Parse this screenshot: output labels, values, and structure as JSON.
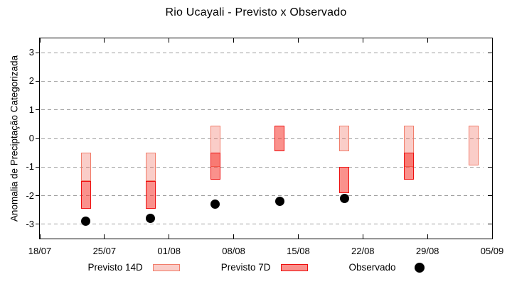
{
  "chart_data": {
    "type": "candlestick",
    "title": "Rio Ucayali - Previsto x Observado",
    "ylabel": "Anomalia de Preciptação Categorizada",
    "xlabel": "",
    "ylim": [
      -3.5,
      3.5
    ],
    "x_range_days": 49,
    "grid": "horizontal-dashed",
    "grid_color": "#9e9e9e",
    "legend_position": "bottom-center",
    "y_ticks": [
      3,
      2,
      1,
      0,
      -1,
      -2,
      -3
    ],
    "x_ticks": [
      {
        "day": 0,
        "label": "18/07"
      },
      {
        "day": 7,
        "label": "25/07"
      },
      {
        "day": 14,
        "label": "01/08"
      },
      {
        "day": 21,
        "label": "08/08"
      },
      {
        "day": 28,
        "label": "15/08"
      },
      {
        "day": 35,
        "label": "22/08"
      },
      {
        "day": 42,
        "label": "29/08"
      },
      {
        "day": 49,
        "label": "05/09"
      }
    ],
    "series": [
      {
        "name": "Previsto 14D",
        "type": "range_bar",
        "fill": "rgba(240,100,85,0.32)",
        "border": "rgba(238,110,90,0.85)",
        "points": [
          {
            "date": "23/07",
            "day": 5,
            "high": -0.5,
            "low": -1.5
          },
          {
            "date": "30/07",
            "day": 12,
            "high": -0.5,
            "low": -1.5
          },
          {
            "date": "06/08",
            "day": 19,
            "high": 0.45,
            "low": -1.0
          },
          {
            "date": "20/08",
            "day": 33,
            "high": 0.45,
            "low": -0.45
          },
          {
            "date": "27/08",
            "day": 40,
            "high": 0.45,
            "low": -1.0
          },
          {
            "date": "03/09",
            "day": 47,
            "high": 0.45,
            "low": -0.95
          }
        ]
      },
      {
        "name": "Previsto 7D",
        "type": "range_bar",
        "fill": "rgba(246,55,45,0.55)",
        "border": "#ee0f0f",
        "points": [
          {
            "date": "23/07",
            "day": 5,
            "high": -1.5,
            "low": -2.45
          },
          {
            "date": "30/07",
            "day": 12,
            "high": -1.5,
            "low": -2.45
          },
          {
            "date": "06/08",
            "day": 19,
            "high": -0.5,
            "low": -1.45
          },
          {
            "date": "13/08",
            "day": 26,
            "high": 0.45,
            "low": -0.45
          },
          {
            "date": "20/08",
            "day": 33,
            "high": -1.0,
            "low": -1.9
          },
          {
            "date": "27/08",
            "day": 40,
            "high": -0.5,
            "low": -1.45
          }
        ]
      },
      {
        "name": "Observado",
        "type": "scatter",
        "color": "#000000",
        "points": [
          {
            "date": "23/07",
            "day": 5,
            "value": -2.9
          },
          {
            "date": "30/07",
            "day": 12,
            "value": -2.8
          },
          {
            "date": "06/08",
            "day": 19,
            "value": -2.3
          },
          {
            "date": "13/08",
            "day": 26,
            "value": -2.2
          },
          {
            "date": "20/08",
            "day": 33,
            "value": -2.1
          }
        ]
      }
    ]
  }
}
